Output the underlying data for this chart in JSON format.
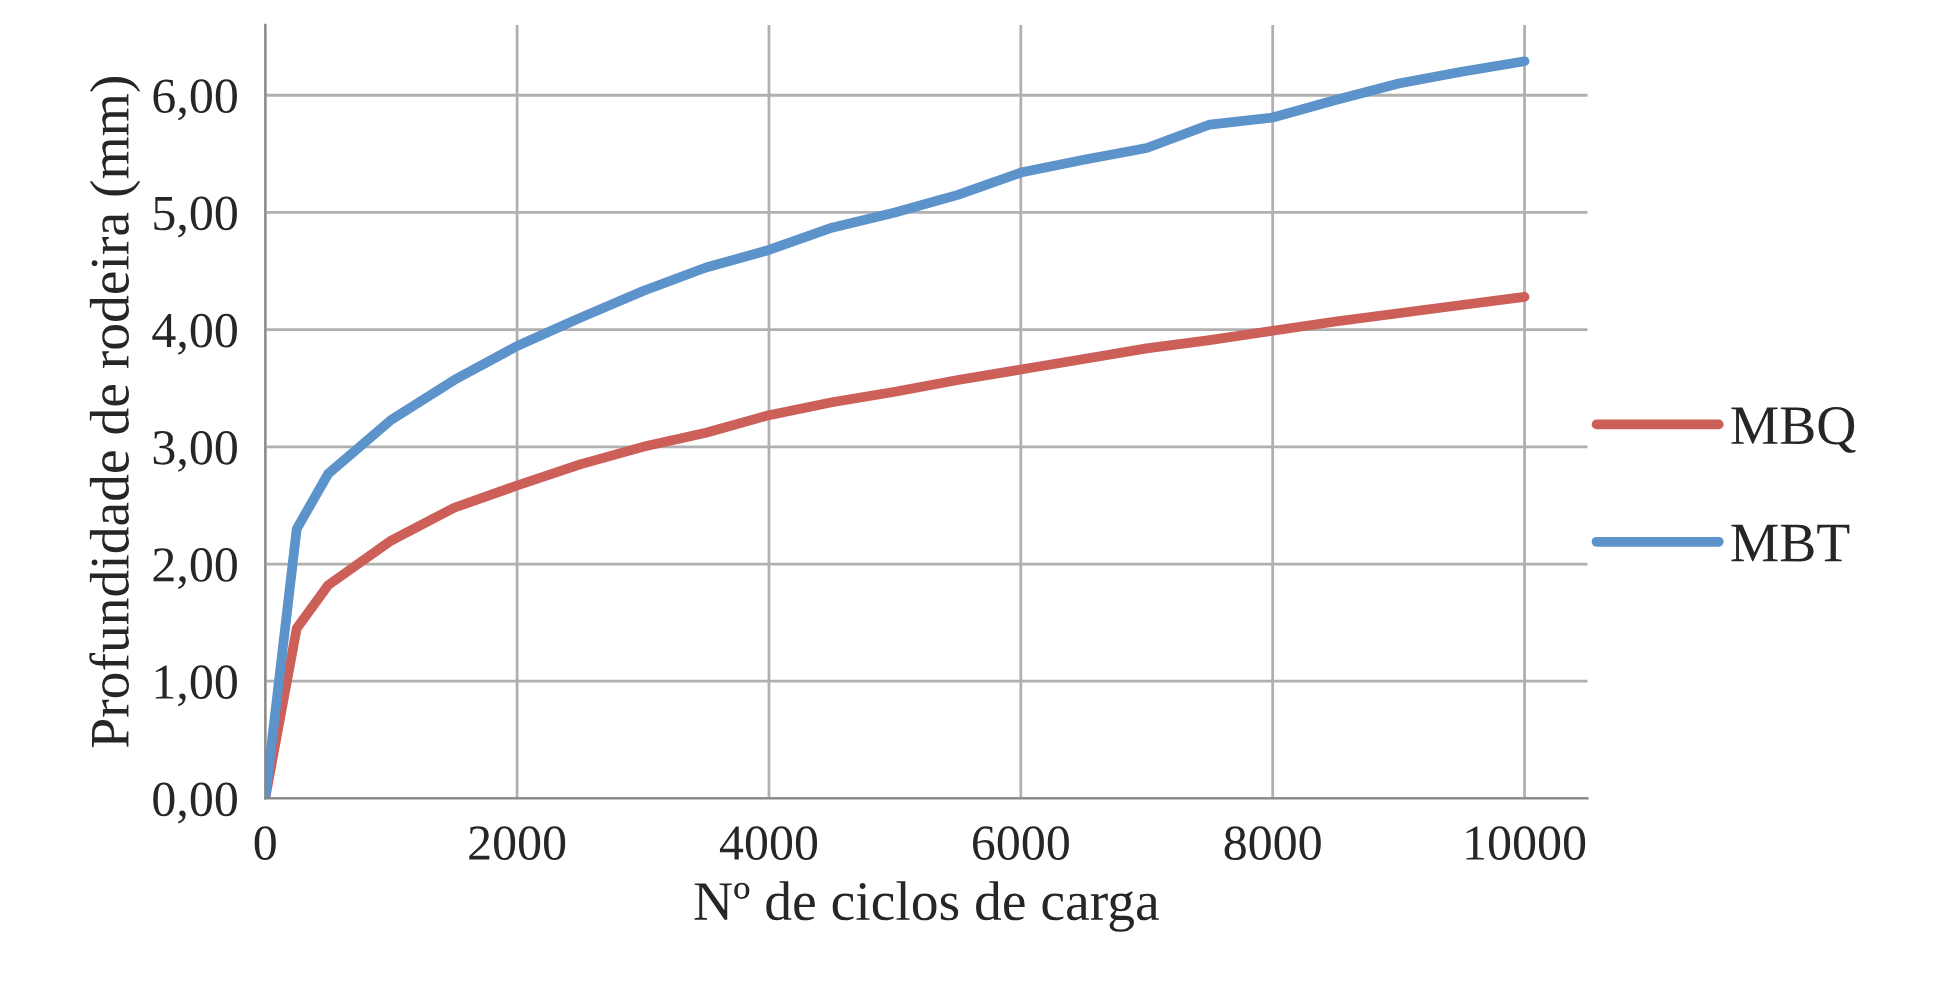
{
  "chart_data": {
    "type": "line",
    "xlabel": "Nº de ciclos de carga",
    "ylabel": "Profundidade de rodeira (mm)",
    "x": [
      0,
      250,
      500,
      1000,
      1500,
      2000,
      2500,
      3000,
      3500,
      4000,
      4500,
      5000,
      5500,
      6000,
      6500,
      7000,
      7500,
      8000,
      8500,
      9000,
      9500,
      10000
    ],
    "series": [
      {
        "name": "MBQ",
        "color": "#cc5f58",
        "values": [
          0,
          1.45,
          1.82,
          2.2,
          2.48,
          2.67,
          2.85,
          3.0,
          3.12,
          3.27,
          3.38,
          3.47,
          3.57,
          3.66,
          3.75,
          3.84,
          3.91,
          3.99,
          4.07,
          4.14,
          4.21,
          4.28
        ]
      },
      {
        "name": "MBT",
        "color": "#5d93cb",
        "values": [
          0,
          2.3,
          2.77,
          3.23,
          3.57,
          3.86,
          4.1,
          4.33,
          4.53,
          4.68,
          4.87,
          5.0,
          5.15,
          5.34,
          5.45,
          5.55,
          5.75,
          5.81,
          5.96,
          6.1,
          6.2,
          6.29
        ]
      }
    ],
    "xlim": [
      0,
      10500
    ],
    "xticks": [
      0,
      2000,
      4000,
      6000,
      8000,
      10000
    ],
    "ylim": [
      0,
      6.6
    ],
    "yticks": [
      {
        "value": 0,
        "label": "0,00"
      },
      {
        "value": 1,
        "label": "1,00"
      },
      {
        "value": 2,
        "label": "2,00"
      },
      {
        "value": 3,
        "label": "3,00"
      },
      {
        "value": 4,
        "label": "4,00"
      },
      {
        "value": 5,
        "label": "5,00"
      },
      {
        "value": 6,
        "label": "6,00"
      }
    ],
    "grid": true,
    "legend": "right",
    "marker": "none",
    "line_style": "solid"
  }
}
